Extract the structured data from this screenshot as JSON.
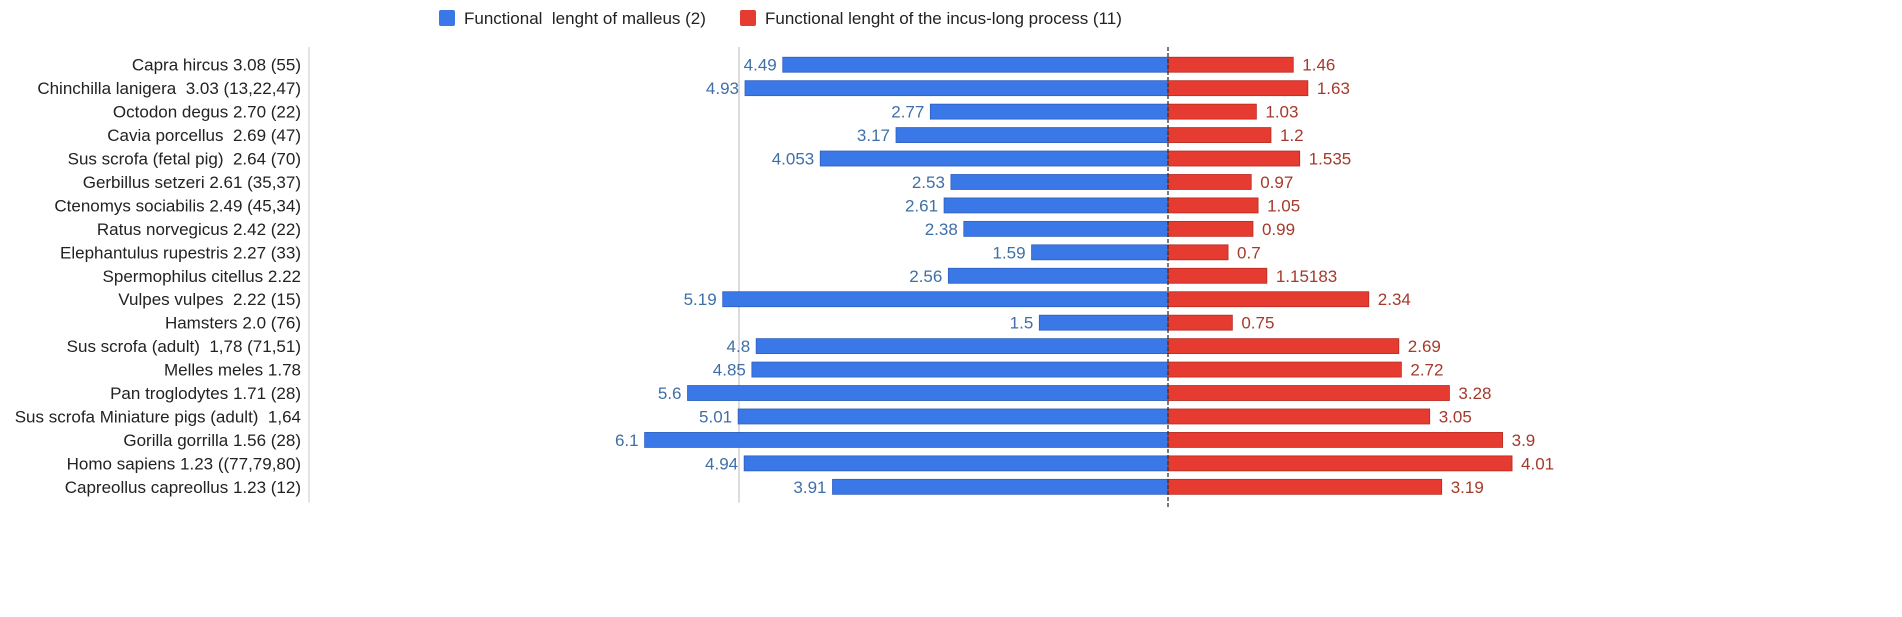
{
  "chart_data": {
    "type": "bar",
    "orientation": "horizontal-diverging",
    "legend": {
      "placement": "top-center",
      "entries": [
        {
          "label": "Functional  lenght of malleus (2)",
          "color": "#3b78e7"
        },
        {
          "label": "Functional lenght of the incus-long process (11)",
          "color": "#e53b30"
        }
      ]
    },
    "categories": [
      "Capra hircus 3.08 (55)",
      "Chinchilla lanigera  3.03 (13,22,47)",
      "Octodon degus 2.70 (22)",
      "Cavia porcellus  2.69 (47)",
      "Sus scrofa (fetal pig)  2.64 (70)",
      "Gerbillus setzeri 2.61 (35,37)",
      "Ctenomys sociabilis 2.49 (45,34)",
      "Ratus norvegicus 2.42 (22)",
      "Elephantulus rupestris 2.27 (33)",
      "Spermophilus citellus 2.22",
      "Vulpes vulpes  2.22 (15)",
      "Hamsters 2.0 (76)",
      "Sus scrofa (adult)  1,78 (71,51)",
      "Melles meles 1.78",
      "Pan troglodytes 1.71 (28)",
      "Sus scrofa Miniature pigs (adult)  1,64",
      "Gorilla gorrilla 1.56 (28)",
      "Homo sapiens 1.23 ((77,79,80)",
      "Capreollus capreollus 1.23 (12)"
    ],
    "series": [
      {
        "name": "Functional  lenght of malleus (2)",
        "color": "#3b78e7",
        "direction": "left",
        "values": [
          4.49,
          4.93,
          2.77,
          3.17,
          4.053,
          2.53,
          2.61,
          2.38,
          1.59,
          2.56,
          5.19,
          1.5,
          4.8,
          4.85,
          5.6,
          5.01,
          6.1,
          4.94,
          3.91
        ],
        "labels": [
          "4.49",
          "4.93",
          "2.77",
          "3.17",
          "4.053",
          "2.53",
          "2.61",
          "2.38",
          "1.59",
          "2.56",
          "5.19",
          "1.5",
          "4.8",
          "4.85",
          "5.6",
          "5.01",
          "6.1",
          "4.94",
          "3.91"
        ]
      },
      {
        "name": "Functional lenght of the incus-long process (11)",
        "color": "#e53b30",
        "direction": "right",
        "values": [
          1.46,
          1.63,
          1.03,
          1.2,
          1.535,
          0.97,
          1.05,
          0.99,
          0.7,
          1.15183,
          2.34,
          0.75,
          2.69,
          2.72,
          3.28,
          3.05,
          3.9,
          4.01,
          3.19
        ],
        "labels": [
          "1.46",
          "1.63",
          "1.03",
          "1.2",
          "1.535",
          "0.97",
          "1.05",
          "0.99",
          "0.7",
          "1.15183",
          "2.34",
          "0.75",
          "2.69",
          "2.72",
          "3.28",
          "3.05",
          "3.9",
          "4.01",
          "3.19"
        ]
      }
    ],
    "reference_line": {
      "side": "left",
      "value": 5
    }
  }
}
